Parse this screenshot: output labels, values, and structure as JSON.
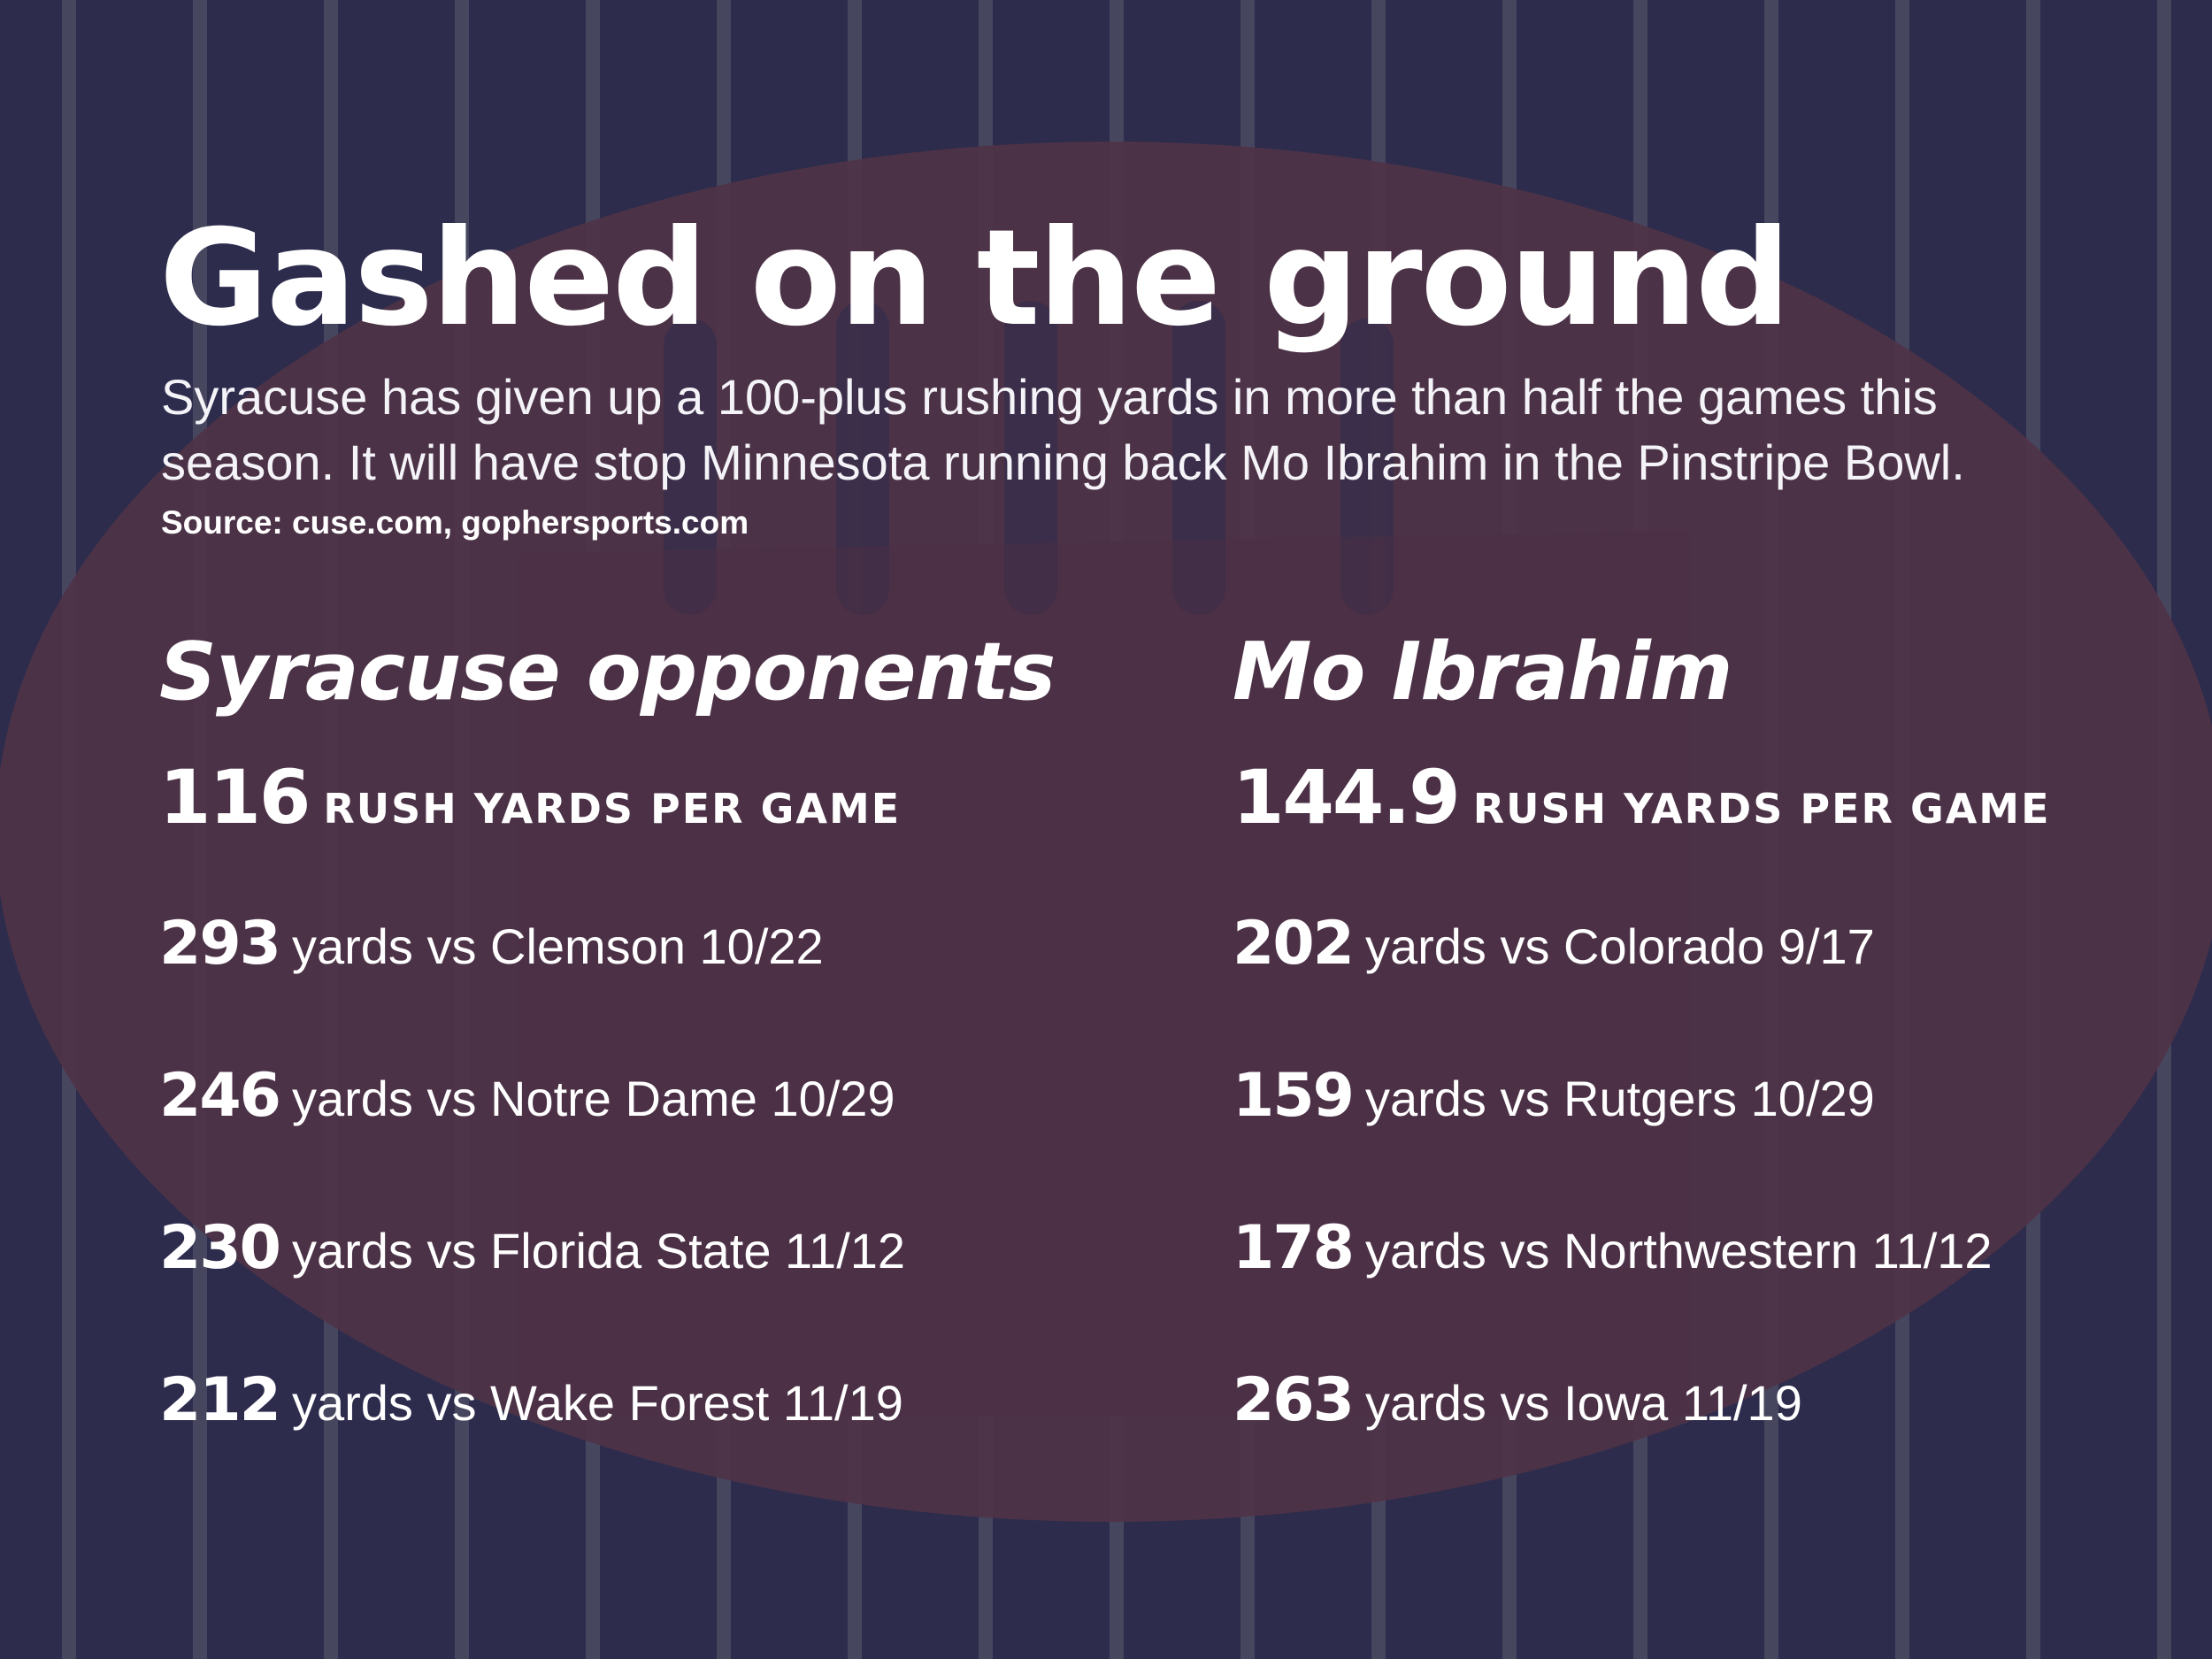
{
  "header": {
    "title": "Gashed on the ground",
    "subtitle": "Syracuse has given up a 100-plus rushing yards in more than half the games this season. It will have stop Minnesota running back Mo Ibrahim in the Pinstripe Bowl.",
    "source": "Source: cuse.com, gophersports.com"
  },
  "colors": {
    "background": "#2d2c4d",
    "stripe": "#47465f",
    "football": "#4f3346",
    "text": "#ffffff"
  },
  "columns": {
    "left": {
      "heading": "Syracuse opponents",
      "avg_value": "116",
      "avg_label": "RUSH YARDS PER GAME",
      "games": [
        {
          "yards": "293",
          "text": "yards vs Clemson 10/22"
        },
        {
          "yards": "246",
          "text": "yards vs Notre Dame 10/29"
        },
        {
          "yards": "230",
          "text": "yards vs Florida State 11/12"
        },
        {
          "yards": "212",
          "text": "yards vs Wake Forest 11/19"
        }
      ]
    },
    "right": {
      "heading": "Mo Ibrahim",
      "avg_value": "144.9",
      "avg_label": "RUSH YARDS PER GAME",
      "games": [
        {
          "yards": "202",
          "text": "yards vs Colorado 9/17"
        },
        {
          "yards": "159",
          "text": "yards vs Rutgers 10/29"
        },
        {
          "yards": "178",
          "text": "yards vs Northwestern 11/12"
        },
        {
          "yards": "263",
          "text": "yards vs Iowa 11/19"
        }
      ]
    }
  }
}
